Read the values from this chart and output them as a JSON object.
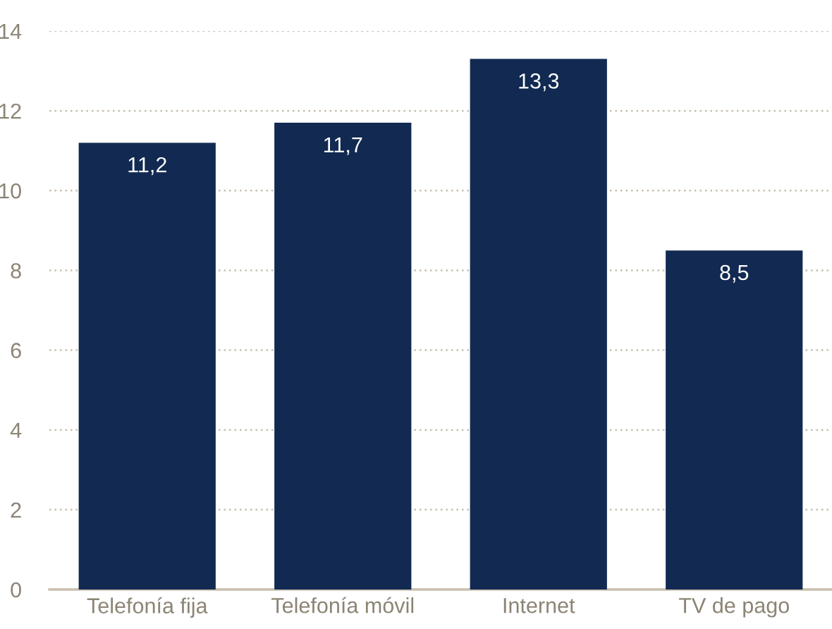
{
  "chart_data": {
    "type": "bar",
    "categories": [
      "Telefonía fija",
      "Telefonía móvil",
      "Internet",
      "TV de pago"
    ],
    "values": [
      11.2,
      11.7,
      13.3,
      8.5
    ],
    "value_labels": [
      "11,2",
      "11,7",
      "13,3",
      "8,5"
    ],
    "color": "#122a52",
    "ylim": [
      0,
      14
    ],
    "yticks": [
      0,
      2,
      4,
      6,
      8,
      10,
      12,
      14
    ],
    "grid": "y",
    "legend": false
  }
}
